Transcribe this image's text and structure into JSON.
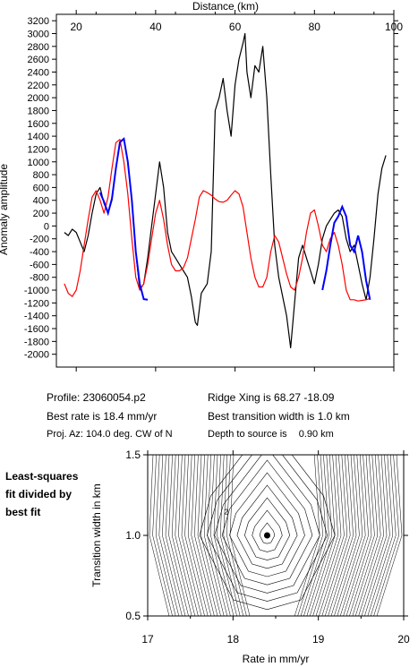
{
  "chart_data": [
    {
      "type": "line",
      "title": "",
      "xlabel": "Distance (km)",
      "ylabel": "Anomaly amplitude",
      "xlim": [
        15,
        100
      ],
      "ylim": [
        -2200,
        3300
      ],
      "x_ticks": [
        "20",
        "40",
        "60",
        "80",
        "100"
      ],
      "y_ticks": [
        "3200",
        "3000",
        "2800",
        "2600",
        "2400",
        "2200",
        "2000",
        "1800",
        "1600",
        "1400",
        "1200",
        "1000",
        "800",
        "600",
        "400",
        "200",
        "0",
        "-200",
        "-400",
        "-600",
        "-800",
        "-1000",
        "-1200",
        "-1400",
        "-1600",
        "-1800",
        "-2000"
      ],
      "grid": false,
      "series": [
        {
          "color": "#000000",
          "x": [
            17,
            18,
            19,
            20,
            21,
            22,
            23,
            24,
            25,
            26,
            27,
            28,
            29,
            30,
            31,
            32,
            33,
            34,
            35,
            36,
            37,
            38,
            39,
            40,
            41,
            42,
            43,
            44,
            45,
            46,
            47,
            48,
            49,
            50,
            50.5,
            51,
            51.5,
            52,
            53,
            54,
            55,
            56,
            57,
            58,
            59,
            60,
            61,
            62,
            62.5,
            63,
            64,
            65,
            66,
            67,
            68,
            69,
            70,
            71,
            72,
            73,
            74,
            75,
            76,
            77,
            78,
            79,
            80,
            81,
            82,
            83,
            84,
            85,
            86,
            87,
            88,
            89,
            90,
            91,
            92,
            93,
            94,
            95,
            96,
            97,
            98
          ],
          "y": [
            -100,
            -150,
            -50,
            -100,
            -250,
            -400,
            -150,
            200,
            500,
            600,
            350,
            200,
            400,
            900,
            1300,
            1350,
            1000,
            400,
            -400,
            -1000,
            -900,
            -500,
            0,
            500,
            1000,
            600,
            -100,
            -400,
            -500,
            -600,
            -700,
            -800,
            -1100,
            -1500,
            -1550,
            -1300,
            -1050,
            -1000,
            -900,
            -400,
            1800,
            2000,
            2300,
            1800,
            1400,
            2200,
            2600,
            2850,
            3000,
            2400,
            2000,
            2500,
            2400,
            2800,
            2000,
            800,
            -300,
            -800,
            -1100,
            -1400,
            -1900,
            -1200,
            -500,
            -300,
            -500,
            -700,
            -900,
            -600,
            -200,
            0,
            100,
            200,
            250,
            150,
            -200,
            -400,
            -300,
            -600,
            -900,
            -1150,
            -800,
            -200,
            500,
            900,
            1100
          ]
        },
        {
          "color": "#ff0000",
          "x": [
            17,
            18,
            19,
            20,
            21,
            22,
            23,
            24,
            25,
            26,
            27,
            28,
            29,
            30,
            31,
            32,
            33,
            34,
            35,
            36,
            37,
            38,
            39,
            40,
            41,
            42,
            43,
            44,
            45,
            46,
            47,
            48,
            49,
            50,
            51,
            52,
            53,
            54,
            55,
            56,
            57,
            58,
            59,
            60,
            61,
            62,
            63,
            64,
            65,
            66,
            67,
            68,
            69,
            70,
            71,
            72,
            73,
            74,
            75,
            76,
            77,
            78,
            79,
            80,
            81,
            82,
            83,
            84,
            85,
            86,
            87,
            88,
            89,
            90,
            91,
            92,
            93,
            94
          ],
          "y": [
            -900,
            -1050,
            -1100,
            -1000,
            -700,
            -300,
            100,
            450,
            550,
            400,
            200,
            450,
            900,
            1300,
            1350,
            1000,
            500,
            -200,
            -800,
            -1000,
            -900,
            -600,
            -200,
            200,
            400,
            100,
            -300,
            -600,
            -700,
            -700,
            -650,
            -500,
            -200,
            100,
            450,
            550,
            520,
            480,
            420,
            380,
            370,
            400,
            480,
            550,
            500,
            300,
            -100,
            -500,
            -800,
            -950,
            -950,
            -800,
            -400,
            -150,
            -250,
            -500,
            -750,
            -950,
            -1000,
            -800,
            -500,
            -100,
            200,
            250,
            0,
            -300,
            -400,
            -200,
            -100,
            -300,
            -600,
            -1000,
            -1150,
            -1150,
            -1170,
            -1160,
            -1150,
            -1130
          ],
          "x_fix": true
        },
        {
          "color": "#0000ff",
          "x": [
            26,
            27,
            28,
            29,
            30,
            31,
            32,
            33,
            34,
            35,
            36,
            37,
            38,
            82,
            83,
            84,
            85,
            86,
            87,
            88,
            89,
            90,
            91,
            92,
            93,
            94
          ],
          "y": [
            520,
            380,
            200,
            430,
            900,
            1310,
            1360,
            1000,
            400,
            -400,
            -900,
            -1140,
            -1150,
            -1000,
            -700,
            -300,
            50,
            150,
            300,
            150,
            -300,
            -400,
            -150,
            -400,
            -850,
            -1150
          ]
        }
      ]
    },
    {
      "type": "contour",
      "xlabel": "Rate in mm/yr",
      "ylabel": "Transition width in km",
      "xlim": [
        17,
        20
      ],
      "ylim": [
        0.5,
        1.5
      ],
      "x_ticks": [
        "17",
        "18",
        "19",
        "20"
      ],
      "y_ticks": [
        "0.5",
        "1.0",
        "1.5"
      ],
      "best_fit": {
        "rate": 18.4,
        "width": 1.0
      },
      "contour_label": "2"
    }
  ],
  "info": {
    "profile": "Profile: 23060054.p2",
    "ridge_xing": "Ridge Xing is 68.27 -18.09",
    "best_rate": "Best rate is 18.4 mm/yr",
    "best_width": "Best transition width is 1.0 km",
    "proj_az": "Proj. Az: 104.0 deg. CW of N",
    "depth_label": "Depth to source is",
    "depth_value": "0.90 km"
  },
  "side_note": {
    "line1": "Least-squares",
    "line2": "fit divided by",
    "line3": "best fit"
  }
}
